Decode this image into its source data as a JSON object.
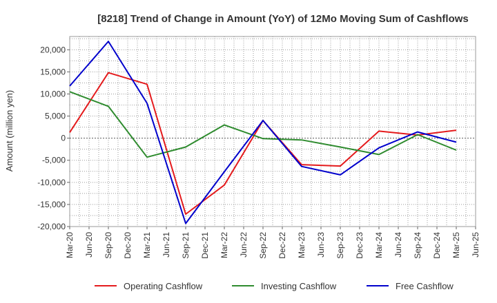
{
  "chart_data": {
    "type": "line",
    "title": "[8218]  Trend of Change in Amount (YoY) of 12Mo Moving Sum of Cashflows",
    "xlabel": "",
    "ylabel": "Amount (million yen)",
    "ylim": [
      -20000,
      23000
    ],
    "yticks": [
      -20000,
      -15000,
      -10000,
      -5000,
      0,
      5000,
      10000,
      15000,
      20000
    ],
    "ytick_labels": [
      "-20,000",
      "-15,000",
      "-10,000",
      "-5,000",
      "0",
      "5,000",
      "10,000",
      "15,000",
      "20,000"
    ],
    "categories": [
      "Mar-20",
      "Jun-20",
      "Sep-20",
      "Dec-20",
      "Mar-21",
      "Jun-21",
      "Sep-21",
      "Dec-21",
      "Mar-22",
      "Jun-22",
      "Sep-22",
      "Dec-22",
      "Mar-23",
      "Jun-23",
      "Sep-23",
      "Dec-23",
      "Mar-24",
      "Jun-24",
      "Sep-24",
      "Dec-24",
      "Mar-25",
      "Jun-25"
    ],
    "grid": true,
    "legend_position": "bottom",
    "series": [
      {
        "name": "Operating Cashflow",
        "color": "#e41a1c",
        "values": [
          1300,
          null,
          14800,
          null,
          12200,
          null,
          -17200,
          null,
          -10600,
          null,
          4000,
          null,
          -6000,
          null,
          -6300,
          null,
          1600,
          null,
          700,
          null,
          1800,
          null
        ]
      },
      {
        "name": "Investing Cashflow",
        "color": "#2e8b2e",
        "values": [
          10500,
          null,
          7200,
          null,
          -4300,
          null,
          -2000,
          null,
          3000,
          null,
          -100,
          null,
          -400,
          null,
          -2000,
          null,
          -3700,
          null,
          800,
          null,
          -2700,
          null
        ]
      },
      {
        "name": "Free Cashflow",
        "color": "#0000cc",
        "values": [
          11800,
          null,
          21900,
          null,
          7900,
          null,
          -19300,
          null,
          -7600,
          null,
          4000,
          null,
          -6400,
          null,
          -8300,
          null,
          -2200,
          null,
          1400,
          null,
          -900,
          null
        ]
      }
    ]
  }
}
